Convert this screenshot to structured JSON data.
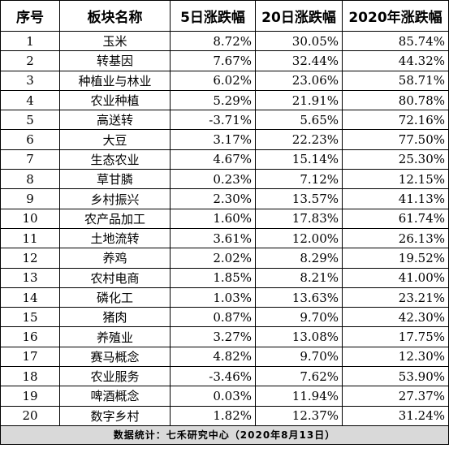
{
  "table": {
    "headers": [
      "序号",
      "板块名称",
      "5日涨跌幅",
      "20日涨跌幅",
      "2020年涨跌幅"
    ],
    "rows": [
      [
        "1",
        "玉米",
        "8.72%",
        "30.05%",
        "85.74%"
      ],
      [
        "2",
        "转基因",
        "7.67%",
        "32.44%",
        "44.32%"
      ],
      [
        "3",
        "种植业与林业",
        "6.02%",
        "23.06%",
        "58.71%"
      ],
      [
        "4",
        "农业种植",
        "5.29%",
        "21.91%",
        "80.78%"
      ],
      [
        "5",
        "高送转",
        "-3.71%",
        "5.65%",
        "72.16%"
      ],
      [
        "6",
        "大豆",
        "3.17%",
        "22.23%",
        "77.50%"
      ],
      [
        "7",
        "生态农业",
        "4.67%",
        "15.14%",
        "25.30%"
      ],
      [
        "8",
        "草甘膦",
        "0.23%",
        "7.12%",
        "12.15%"
      ],
      [
        "9",
        "乡村振兴",
        "2.30%",
        "13.57%",
        "41.13%"
      ],
      [
        "10",
        "农产品加工",
        "1.60%",
        "17.83%",
        "61.74%"
      ],
      [
        "11",
        "土地流转",
        "3.61%",
        "12.00%",
        "26.13%"
      ],
      [
        "12",
        "养鸡",
        "2.02%",
        "8.29%",
        "19.52%"
      ],
      [
        "13",
        "农村电商",
        "1.85%",
        "8.21%",
        "41.00%"
      ],
      [
        "14",
        "磷化工",
        "1.03%",
        "13.63%",
        "23.21%"
      ],
      [
        "15",
        "猪肉",
        "0.87%",
        "9.70%",
        "42.30%"
      ],
      [
        "16",
        "养殖业",
        "3.27%",
        "13.08%",
        "17.75%"
      ],
      [
        "17",
        "赛马概念",
        "4.82%",
        "9.70%",
        "12.30%"
      ],
      [
        "18",
        "农业服务",
        "-3.46%",
        "7.62%",
        "53.90%"
      ],
      [
        "19",
        "啤酒概念",
        "0.03%",
        "11.94%",
        "27.37%"
      ],
      [
        "20",
        "数字乡村",
        "1.82%",
        "12.37%",
        "31.24%"
      ]
    ],
    "footer": "数据统计：七禾研究中心（2020年8月13日）"
  }
}
